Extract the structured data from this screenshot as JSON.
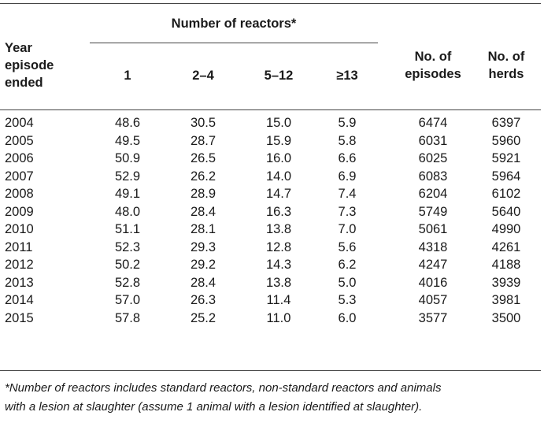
{
  "header": {
    "group_title": "Number of reactors*",
    "year_col_lines": [
      "Year",
      "episode",
      "ended"
    ],
    "reactor_cols": [
      "1",
      "2–4",
      "5–12",
      "≥13"
    ],
    "episodes_col_lines": [
      "No. of",
      "episodes"
    ],
    "herds_col_lines": [
      "No. of",
      "herds"
    ]
  },
  "rows": [
    {
      "year": "2004",
      "r1": "48.6",
      "r2": "30.5",
      "r3": "15.0",
      "r4": "5.9",
      "episodes": "6474",
      "herds": "6397"
    },
    {
      "year": "2005",
      "r1": "49.5",
      "r2": "28.7",
      "r3": "15.9",
      "r4": "5.8",
      "episodes": "6031",
      "herds": "5960"
    },
    {
      "year": "2006",
      "r1": "50.9",
      "r2": "26.5",
      "r3": "16.0",
      "r4": "6.6",
      "episodes": "6025",
      "herds": "5921"
    },
    {
      "year": "2007",
      "r1": "52.9",
      "r2": "26.2",
      "r3": "14.0",
      "r4": "6.9",
      "episodes": "6083",
      "herds": "5964"
    },
    {
      "year": "2008",
      "r1": "49.1",
      "r2": "28.9",
      "r3": "14.7",
      "r4": "7.4",
      "episodes": "6204",
      "herds": "6102"
    },
    {
      "year": "2009",
      "r1": "48.0",
      "r2": "28.4",
      "r3": "16.3",
      "r4": "7.3",
      "episodes": "5749",
      "herds": "5640"
    },
    {
      "year": "2010",
      "r1": "51.1",
      "r2": "28.1",
      "r3": "13.8",
      "r4": "7.0",
      "episodes": "5061",
      "herds": "4990"
    },
    {
      "year": "2011",
      "r1": "52.3",
      "r2": "29.3",
      "r3": "12.8",
      "r4": "5.6",
      "episodes": "4318",
      "herds": "4261"
    },
    {
      "year": "2012",
      "r1": "50.2",
      "r2": "29.2",
      "r3": "14.3",
      "r4": "6.2",
      "episodes": "4247",
      "herds": "4188"
    },
    {
      "year": "2013",
      "r1": "52.8",
      "r2": "28.4",
      "r3": "13.8",
      "r4": "5.0",
      "episodes": "4016",
      "herds": "3939"
    },
    {
      "year": "2014",
      "r1": "57.0",
      "r2": "26.3",
      "r3": "11.4",
      "r4": "5.3",
      "episodes": "4057",
      "herds": "3981"
    },
    {
      "year": "2015",
      "r1": "57.8",
      "r2": "25.2",
      "r3": "11.0",
      "r4": "6.0",
      "episodes": "3577",
      "herds": "3500"
    }
  ],
  "footnote": {
    "line1": "*Number of reactors includes standard reactors, non-standard reactors and animals",
    "line2": "with a lesion at slaughter (assume 1 animal with a lesion identified at slaughter)."
  }
}
